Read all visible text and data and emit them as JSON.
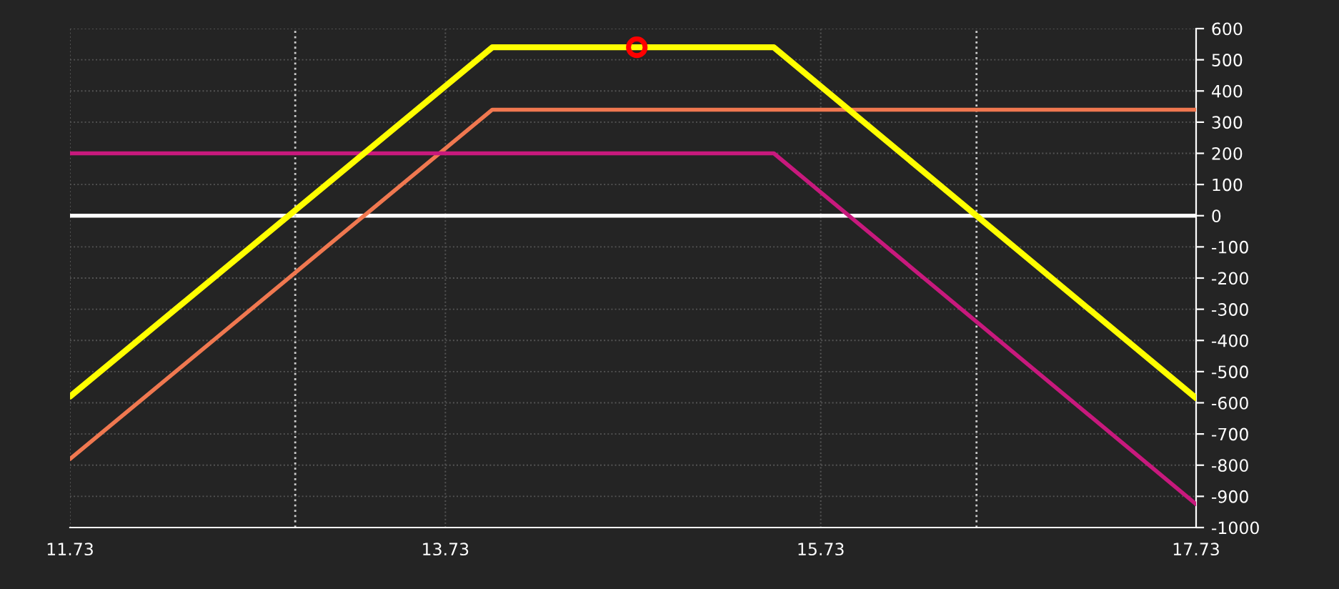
{
  "chart_data": {
    "type": "line",
    "xlim": [
      11.73,
      17.73
    ],
    "xticks": [
      11.73,
      13.73,
      15.73,
      17.73
    ],
    "ylim": [
      -1000,
      600
    ],
    "yticks": [
      -1000,
      -900,
      -800,
      -700,
      -600,
      -500,
      -400,
      -300,
      -200,
      -100,
      0,
      100,
      200,
      300,
      400,
      500,
      600
    ],
    "grid": true,
    "legend": false,
    "marker": "none",
    "line_style": "solid",
    "series": [
      {
        "color": "#f07850",
        "x": [
          11.73,
          13.98,
          17.73
        ],
        "values": [
          -780,
          340,
          340
        ]
      },
      {
        "color": "#c8197d",
        "x": [
          11.73,
          15.48,
          17.73
        ],
        "values": [
          200,
          200,
          -925
        ]
      },
      {
        "color": "#ffff00",
        "x": [
          11.73,
          13.98,
          15.48,
          17.73
        ],
        "values": [
          -580,
          540,
          540,
          -585
        ]
      },
      {
        "type": "scatter",
        "color": "#ff0000",
        "marker": "circle",
        "x": [
          14.75
        ],
        "values": [
          540
        ]
      }
    ],
    "ref_lines": [
      {
        "axis": "y",
        "value": 0,
        "color": "#ffffff",
        "line_style": "solid"
      },
      {
        "axis": "x",
        "value": 12.93,
        "color": "#cccccc",
        "line_style": "dotted"
      },
      {
        "axis": "x",
        "value": 16.56,
        "color": "#cccccc",
        "line_style": "dotted"
      }
    ]
  }
}
